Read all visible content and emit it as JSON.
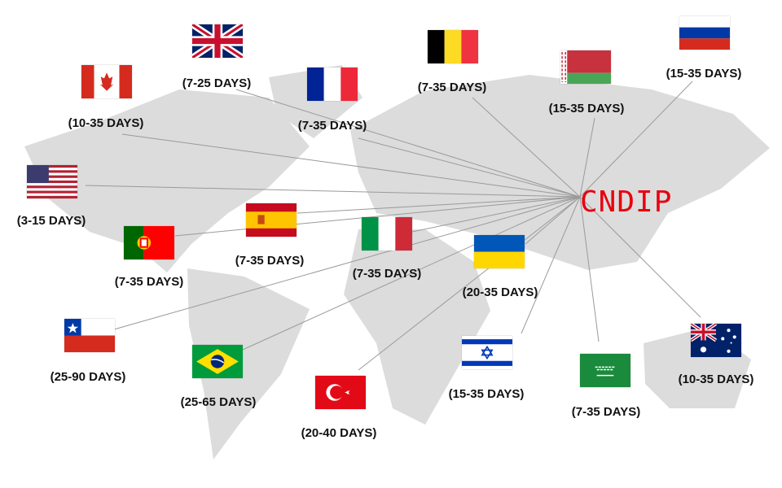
{
  "hub": {
    "label": "CNDIP",
    "color": "#e8000e"
  },
  "destinations": [
    {
      "country": "United Kingdom",
      "flag": "uk-flag",
      "days": "(7-25 DAYS)"
    },
    {
      "country": "Canada",
      "flag": "canada-flag",
      "days": "(10-35 DAYS)"
    },
    {
      "country": "France",
      "flag": "france-flag",
      "days": "(7-35 DAYS)"
    },
    {
      "country": "Belgium",
      "flag": "belgium-flag",
      "days": "(7-35 DAYS)"
    },
    {
      "country": "Belarus",
      "flag": "belarus-flag",
      "days": "(15-35 DAYS)"
    },
    {
      "country": "Russia",
      "flag": "russia-flag",
      "days": "(15-35 DAYS)"
    },
    {
      "country": "United States",
      "flag": "usa-flag",
      "days": "(3-15 DAYS)"
    },
    {
      "country": "Spain",
      "flag": "spain-flag",
      "days": "(7-35 DAYS)"
    },
    {
      "country": "Portugal",
      "flag": "portugal-flag",
      "days": "(7-35 DAYS)"
    },
    {
      "country": "Italy",
      "flag": "italy-flag",
      "days": "(7-35 DAYS)"
    },
    {
      "country": "Ukraine",
      "flag": "ukraine-flag",
      "days": "(20-35 DAYS)"
    },
    {
      "country": "Chile",
      "flag": "chile-flag",
      "days": "(25-90 DAYS)"
    },
    {
      "country": "Brazil",
      "flag": "brazil-flag",
      "days": "(25-65 DAYS)"
    },
    {
      "country": "Turkey",
      "flag": "turkey-flag",
      "days": "(20-40 DAYS)"
    },
    {
      "country": "Israel",
      "flag": "israel-flag",
      "days": "(15-35 DAYS)"
    },
    {
      "country": "Saudi Arabia",
      "flag": "saudi-flag",
      "days": "(7-35 DAYS)"
    },
    {
      "country": "Australia",
      "flag": "australia-flag",
      "days": "(10-35 DAYS)"
    }
  ]
}
